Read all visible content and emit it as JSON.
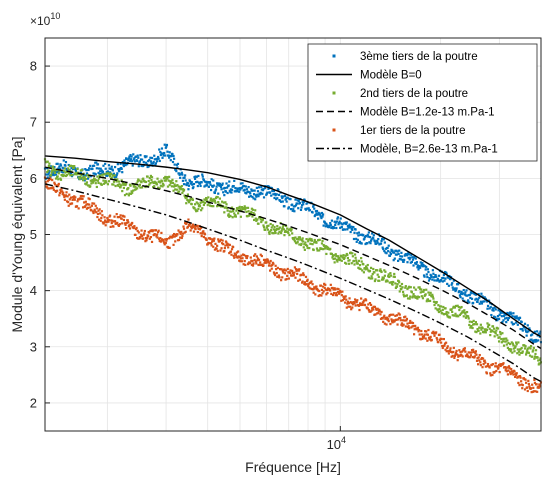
{
  "chart_data": {
    "type": "scatter",
    "xlabel": "Fréquence [Hz]",
    "ylabel": "Module d'Young équivalent [Pa]",
    "y_multiplier_label": "×10",
    "y_multiplier_exponent": "10",
    "x_scale": "log",
    "xlim": [
      1300,
      40000
    ],
    "ylim": [
      1.5,
      8.5
    ],
    "x_ticks": [
      10000
    ],
    "x_tick_labels": [
      {
        "base": "10",
        "exp": "4"
      }
    ],
    "y_ticks": [
      2,
      3,
      4,
      5,
      6,
      7,
      8
    ],
    "y_tick_labels": [
      "2",
      "3",
      "4",
      "5",
      "6",
      "7",
      "8"
    ],
    "grid": true,
    "legend_position": "top-right",
    "series": [
      {
        "name": "3ème tiers de la poutre",
        "kind": "scatter",
        "color": "#0072BD",
        "x": [
          1300,
          1500,
          1750,
          2000,
          2300,
          2700,
          3000,
          3500,
          4000,
          4500,
          5000,
          5500,
          6000,
          7000,
          8000,
          9000,
          10000,
          11000,
          12000,
          13000,
          15000,
          17000,
          19000,
          21000,
          24000,
          27000,
          30000,
          34000,
          38000,
          40000
        ],
        "y": [
          6.15,
          6.15,
          6.1,
          6.15,
          6.25,
          6.35,
          6.45,
          5.95,
          5.9,
          5.85,
          5.8,
          5.8,
          5.75,
          5.6,
          5.45,
          5.3,
          5.15,
          5.05,
          4.95,
          4.85,
          4.65,
          4.45,
          4.3,
          4.15,
          3.95,
          3.75,
          3.6,
          3.4,
          3.25,
          3.2
        ]
      },
      {
        "name": "Modèle B=0",
        "kind": "line",
        "color": "#000000",
        "dash": "solid",
        "x": [
          1300,
          1600,
          2000,
          2500,
          3000,
          3500,
          4000,
          5000,
          6000,
          7000,
          8000,
          10000,
          12000,
          14000,
          17000,
          20000,
          24000,
          28000,
          33000,
          38000,
          40000
        ],
        "y": [
          6.4,
          6.36,
          6.3,
          6.25,
          6.2,
          6.15,
          6.1,
          5.98,
          5.85,
          5.7,
          5.58,
          5.35,
          5.1,
          4.9,
          4.6,
          4.35,
          4.05,
          3.8,
          3.5,
          3.25,
          3.18
        ]
      },
      {
        "name": "2nd tiers de la poutre",
        "kind": "scatter",
        "color": "#77AC30",
        "x": [
          1300,
          1500,
          1750,
          2000,
          2300,
          2700,
          3000,
          3500,
          4000,
          4500,
          5000,
          5500,
          6000,
          7000,
          8000,
          9000,
          10000,
          11000,
          12000,
          13000,
          15000,
          17000,
          19000,
          21000,
          24000,
          27000,
          30000,
          34000,
          38000,
          40000
        ],
        "y": [
          6.2,
          6.1,
          6.0,
          5.95,
          5.85,
          5.9,
          6.0,
          5.6,
          5.55,
          5.5,
          5.4,
          5.3,
          5.2,
          5.0,
          4.85,
          4.7,
          4.6,
          4.5,
          4.4,
          4.3,
          4.1,
          3.95,
          3.8,
          3.65,
          3.5,
          3.35,
          3.15,
          3.0,
          2.85,
          2.75
        ]
      },
      {
        "name": "Modèle B=1.2e-13 m.Pa-1",
        "kind": "line",
        "color": "#000000",
        "dash": "dashed",
        "x": [
          1300,
          1600,
          2000,
          2500,
          3000,
          3500,
          4000,
          5000,
          6000,
          7000,
          8000,
          10000,
          12000,
          14000,
          17000,
          20000,
          24000,
          28000,
          33000,
          38000,
          40000
        ],
        "y": [
          6.2,
          6.1,
          6.0,
          5.88,
          5.78,
          5.68,
          5.58,
          5.42,
          5.28,
          5.15,
          5.03,
          4.82,
          4.62,
          4.45,
          4.22,
          4.02,
          3.78,
          3.55,
          3.3,
          3.05,
          2.97
        ]
      },
      {
        "name": "1er tiers de la poutre",
        "kind": "scatter",
        "color": "#D95319",
        "x": [
          1300,
          1500,
          1750,
          2000,
          2300,
          2700,
          3000,
          3500,
          4000,
          4500,
          5000,
          5500,
          6000,
          7000,
          8000,
          9000,
          10000,
          11000,
          12000,
          13000,
          15000,
          17000,
          19000,
          21000,
          24000,
          27000,
          30000,
          34000,
          38000,
          40000
        ],
        "y": [
          5.9,
          5.7,
          5.5,
          5.3,
          5.15,
          4.95,
          4.85,
          5.15,
          4.95,
          4.75,
          4.6,
          4.55,
          4.45,
          4.3,
          4.15,
          4.0,
          3.9,
          3.8,
          3.7,
          3.6,
          3.45,
          3.3,
          3.15,
          3.0,
          2.85,
          2.7,
          2.6,
          2.45,
          2.3,
          2.2
        ]
      },
      {
        "name": "Modèle, B=2.6e-13 m.Pa-1",
        "kind": "line",
        "color": "#000000",
        "dash": "dashdot",
        "x": [
          1300,
          1600,
          2000,
          2500,
          3000,
          3500,
          4000,
          5000,
          6000,
          7000,
          8000,
          10000,
          12000,
          14000,
          17000,
          20000,
          24000,
          28000,
          33000,
          38000,
          40000
        ],
        "y": [
          5.9,
          5.78,
          5.63,
          5.48,
          5.35,
          5.22,
          5.1,
          4.9,
          4.72,
          4.58,
          4.45,
          4.22,
          4.02,
          3.85,
          3.62,
          3.42,
          3.18,
          2.95,
          2.7,
          2.45,
          2.38
        ]
      }
    ]
  }
}
